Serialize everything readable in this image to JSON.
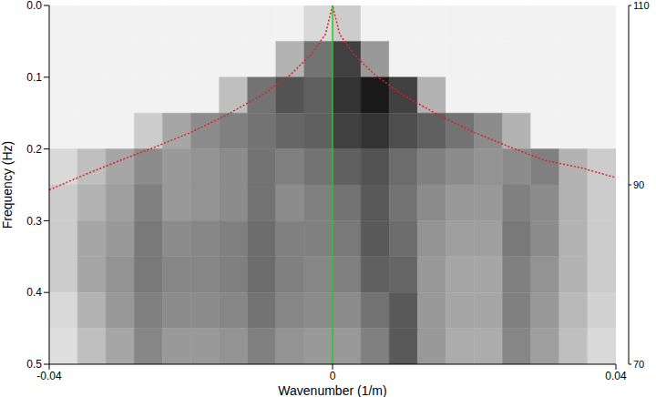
{
  "chart_data": {
    "type": "heatmap",
    "x_label": "Wavenumber (1/m)",
    "y_label": "Frequency (Hz)",
    "xlim": [
      -0.04,
      0.04
    ],
    "ylim": [
      0.5,
      0
    ],
    "xticks": [
      -0.04,
      0,
      0.04
    ],
    "yticks": [
      {
        "value": 0,
        "label": "0.0"
      },
      0.1,
      0.2,
      0.3,
      0.4,
      0.5
    ],
    "cells": {
      "x_bins": [
        -0.04,
        -0.036,
        -0.032,
        -0.028,
        -0.024,
        -0.02,
        -0.016,
        -0.012,
        -0.008,
        -0.004,
        0,
        0.004,
        0.008,
        0.012,
        0.016,
        0.02,
        0.024,
        0.028,
        0.032,
        0.036,
        0.04
      ],
      "y_bins": [
        0,
        0.05,
        0.1,
        0.15,
        0.2,
        0.25,
        0.3,
        0.35,
        0.4,
        0.45,
        0.5
      ],
      "values": [
        [
          72,
          72,
          72,
          72,
          72,
          72,
          72,
          72,
          72,
          76,
          78,
          72,
          72,
          72,
          72,
          72,
          72,
          72,
          72,
          72
        ],
        [
          72,
          72,
          72,
          72,
          72,
          72,
          72,
          72,
          82,
          92,
          100,
          86,
          72,
          72,
          72,
          72,
          72,
          72,
          72,
          72
        ],
        [
          72,
          72,
          72,
          72,
          72,
          72,
          80,
          92,
          97,
          95,
          102,
          106,
          100,
          82,
          72,
          72,
          72,
          72,
          72,
          72
        ],
        [
          72,
          72,
          72,
          78,
          84,
          88,
          90,
          92,
          94,
          95,
          100,
          102,
          98,
          95,
          92,
          88,
          82,
          72,
          72,
          72
        ],
        [
          76,
          80,
          84,
          88,
          86,
          87,
          88,
          92,
          90,
          92,
          95,
          97,
          93,
          90,
          88,
          87,
          88,
          90,
          82,
          78
        ],
        [
          78,
          82,
          85,
          90,
          86,
          87,
          88,
          92,
          88,
          90,
          92,
          96,
          92,
          88,
          86,
          86,
          90,
          88,
          82,
          78
        ],
        [
          78,
          84,
          86,
          91,
          88,
          89,
          90,
          93,
          90,
          90,
          91,
          96,
          93,
          87,
          85,
          85,
          91,
          88,
          82,
          78
        ],
        [
          78,
          84,
          87,
          91,
          89,
          89,
          90,
          93,
          90,
          89,
          90,
          95,
          94,
          86,
          84,
          84,
          90,
          87,
          82,
          78
        ],
        [
          76,
          82,
          86,
          90,
          88,
          88,
          89,
          92,
          89,
          88,
          88,
          92,
          96,
          86,
          84,
          84,
          90,
          86,
          81,
          77
        ],
        [
          75,
          80,
          84,
          89,
          86,
          86,
          87,
          90,
          87,
          86,
          86,
          90,
          96,
          86,
          83,
          83,
          89,
          85,
          80,
          76
        ]
      ]
    },
    "colorbar": {
      "lim": [
        70,
        110
      ],
      "ticks": [
        70,
        90,
        110
      ]
    },
    "series": [
      {
        "color": "#e02020",
        "line_style": "dotted",
        "x": [
          -0.04,
          -0.035,
          -0.03,
          -0.025,
          -0.02,
          -0.015,
          -0.01,
          -0.006,
          -0.003,
          -0.001,
          0,
          0.001,
          0.003,
          0.006,
          0.01,
          0.015,
          0.02,
          0.025,
          0.03,
          0.035,
          0.04
        ],
        "values": [
          0.257,
          0.236,
          0.216,
          0.197,
          0.177,
          0.153,
          0.125,
          0.097,
          0.068,
          0.04,
          0,
          0.04,
          0.068,
          0.097,
          0.125,
          0.153,
          0.177,
          0.197,
          0.216,
          0.226,
          0.24
        ]
      },
      {
        "color": "#22cc22",
        "line_style": "solid",
        "x": [
          0,
          0
        ],
        "values": [
          0,
          0.5
        ]
      }
    ]
  }
}
